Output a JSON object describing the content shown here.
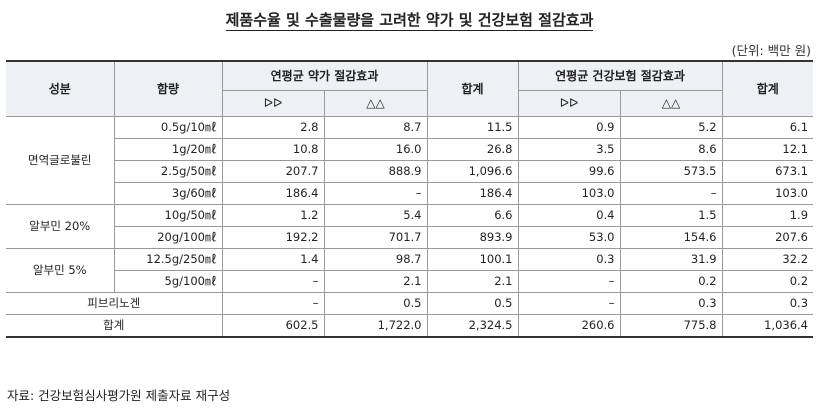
{
  "title": "제품수율 및 수출물량을 고려한 약가 및 건강보험 절감효과",
  "unit": "(단위: 백만 원)",
  "headers": {
    "ingredient": "성분",
    "content": "함량",
    "drug_group": "연평균 약가 절감효과",
    "drug_sub1": "ᐅᐅ",
    "drug_sub2": "△△",
    "total1": "합계",
    "ins_group": "연평균 건강보험 절감효과",
    "ins_sub1": "ᐅᐅ",
    "ins_sub2": "△△",
    "total2": "합계"
  },
  "groups": [
    {
      "ingredient": "면역글로불린",
      "rows": [
        {
          "content": "0.5g/10㎖",
          "d1": "2.8",
          "d2": "8.7",
          "t1": "11.5",
          "i1": "0.9",
          "i2": "5.2",
          "t2": "6.1"
        },
        {
          "content": "1g/20㎖",
          "d1": "10.8",
          "d2": "16.0",
          "t1": "26.8",
          "i1": "3.5",
          "i2": "8.6",
          "t2": "12.1"
        },
        {
          "content": "2.5g/50㎖",
          "d1": "207.7",
          "d2": "888.9",
          "t1": "1,096.6",
          "i1": "99.6",
          "i2": "573.5",
          "t2": "673.1"
        },
        {
          "content": "3g/60㎖",
          "d1": "186.4",
          "d2": "–",
          "t1": "186.4",
          "i1": "103.0",
          "i2": "–",
          "t2": "103.0"
        }
      ]
    },
    {
      "ingredient": "알부민 20%",
      "rows": [
        {
          "content": "10g/50㎖",
          "d1": "1.2",
          "d2": "5.4",
          "t1": "6.6",
          "i1": "0.4",
          "i2": "1.5",
          "t2": "1.9"
        },
        {
          "content": "20g/100㎖",
          "d1": "192.2",
          "d2": "701.7",
          "t1": "893.9",
          "i1": "53.0",
          "i2": "154.6",
          "t2": "207.6"
        }
      ]
    },
    {
      "ingredient": "알부민 5%",
      "rows": [
        {
          "content": "12.5g/250㎖",
          "d1": "1.4",
          "d2": "98.7",
          "t1": "100.1",
          "i1": "0.3",
          "i2": "31.9",
          "t2": "32.2"
        },
        {
          "content": "5g/100㎖",
          "d1": "–",
          "d2": "2.1",
          "t1": "2.1",
          "i1": "–",
          "i2": "0.2",
          "t2": "0.2"
        }
      ]
    }
  ],
  "fibrinogen": {
    "label": "피브리노겐",
    "d1": "–",
    "d2": "0.5",
    "t1": "0.5",
    "i1": "–",
    "i2": "0.3",
    "t2": "0.3"
  },
  "total": {
    "label": "합계",
    "d1": "602.5",
    "d2": "1,722.0",
    "t1": "2,324.5",
    "i1": "260.6",
    "i2": "775.8",
    "t2": "1,036.4"
  },
  "source": "자료: 건강보험심사평가원 제출자료 재구성"
}
